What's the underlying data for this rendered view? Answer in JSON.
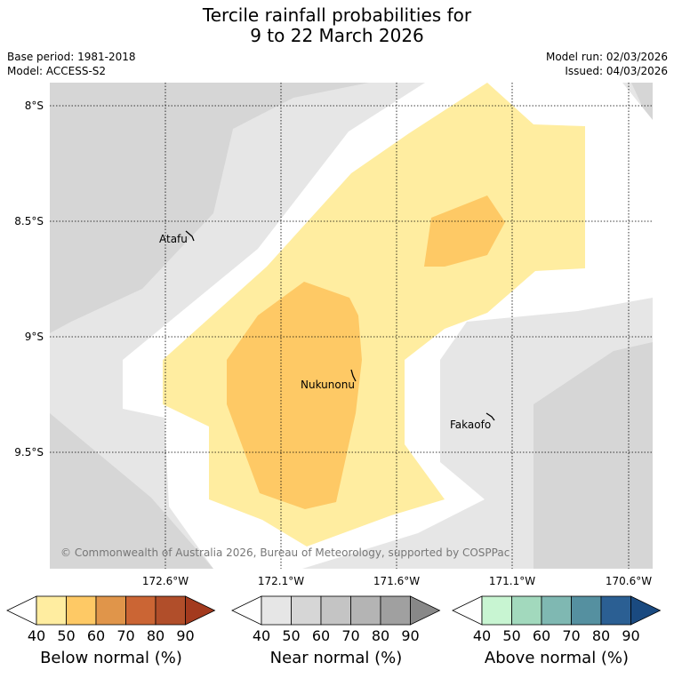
{
  "title": {
    "line1": "Tercile rainfall probabilities for",
    "line2": "9 to 22 March 2026"
  },
  "meta": {
    "base_period": "Base period: 1981-2018",
    "model": "Model: ACCESS-S2",
    "model_run": "Model run: 02/03/2026",
    "issued": "Issued: 04/03/2026"
  },
  "map": {
    "lat_labels": [
      "8°S",
      "8.5°S",
      "9°S",
      "9.5°S"
    ],
    "lon_labels": [
      "172.6°W",
      "172.1°W",
      "171.6°W",
      "171.1°W",
      "170.6°W"
    ],
    "places": {
      "atafu": "Atafu",
      "nukunonu": "Nukunonu",
      "fakaofo": "Fakaofo"
    },
    "copyright": "© Commonwealth of Australia 2026, Bureau of Meteorology, supported by COSPPac"
  },
  "colors": {
    "below": [
      "#ffeda0",
      "#fec965",
      "#e0954a",
      "#cb6534",
      "#b14e2a",
      "#a33a1e"
    ],
    "near": [
      "#e6e6e6",
      "#d6d6d6",
      "#c4c4c4",
      "#b4b4b4",
      "#a0a0a0",
      "#888888"
    ],
    "above": [
      "#c8f5d2",
      "#a2d9bd",
      "#7fb8b2",
      "#5590a0",
      "#2b5f93",
      "#1a4a80"
    ]
  },
  "legends": {
    "ticks": [
      "40",
      "50",
      "60",
      "70",
      "80",
      "90"
    ],
    "below_label": "Below normal (%)",
    "near_label": "Near normal (%)",
    "above_label": "Above normal (%)"
  }
}
